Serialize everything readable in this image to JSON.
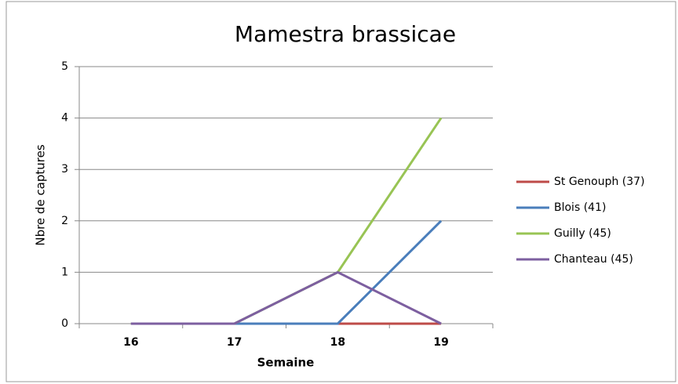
{
  "chart_data": {
    "type": "line",
    "title": "Mamestra brassicae",
    "x_label": "Semaine",
    "y_label": "Nbre de captures",
    "categories": [
      "16",
      "17",
      "18",
      "19"
    ],
    "series": [
      {
        "name": "St Genouph (37)",
        "color": "#be4b48",
        "values": [
          0,
          0,
          0,
          0
        ]
      },
      {
        "name": "Blois (41)",
        "color": "#4a7ebb",
        "values": [
          0,
          0,
          0,
          2
        ]
      },
      {
        "name": "Guilly (45)",
        "color": "#98c454",
        "values": [
          0,
          0,
          1,
          4
        ]
      },
      {
        "name": "Chanteau (45)",
        "color": "#7d5fa0",
        "values": [
          0,
          0,
          1,
          0
        ]
      }
    ],
    "ylim": [
      0,
      5
    ],
    "yticks": [
      0,
      1,
      2,
      3,
      4,
      5
    ],
    "grid": true,
    "legend": "right"
  }
}
